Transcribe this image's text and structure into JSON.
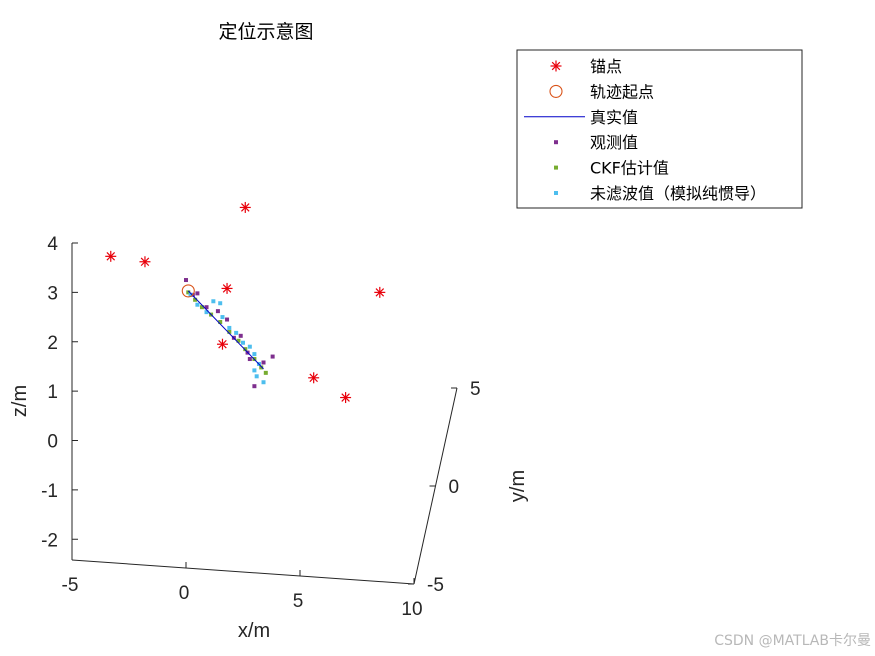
{
  "chart_data": {
    "type": "scatter",
    "title": "定位示意图",
    "xlabel": "x/m",
    "ylabel": "y/m",
    "zlabel": "z/m",
    "xlim": [
      -5,
      10
    ],
    "ylim": [
      -5,
      5
    ],
    "zlim": [
      -2.4,
      4
    ],
    "xticks": [
      "-5",
      "0",
      "5",
      "10"
    ],
    "yticks": [
      "-5",
      "0",
      "5"
    ],
    "zticks": [
      "-2",
      "-1",
      "0",
      "1",
      "2",
      "3",
      "4"
    ],
    "legend_position": "top-right",
    "series": [
      {
        "name": "锚点",
        "marker": "asterisk",
        "color": "#e8000b",
        "points": [
          {
            "x": -3.3,
            "z": 3.73
          },
          {
            "x": -1.8,
            "z": 3.62
          },
          {
            "x": 2.6,
            "z": 4.72
          },
          {
            "x": 1.8,
            "z": 3.08
          },
          {
            "x": 1.6,
            "z": 1.95
          },
          {
            "x": 8.5,
            "z": 3.0
          },
          {
            "x": 5.6,
            "z": 1.27
          },
          {
            "x": 7.0,
            "z": 0.87
          }
        ]
      },
      {
        "name": "轨迹起点",
        "marker": "circle",
        "color": "#d95319",
        "points": [
          {
            "x": 0.1,
            "z": 3.03
          }
        ]
      },
      {
        "name": "真实值",
        "marker": "line",
        "color": "#0000c8",
        "points": [
          {
            "x": 0.1,
            "z": 3.03
          },
          {
            "x": 3.4,
            "z": 1.45
          }
        ]
      },
      {
        "name": "观测值",
        "marker": "square",
        "color": "#7e2f8e",
        "points": [
          {
            "x": 0.0,
            "z": 3.25
          },
          {
            "x": 0.3,
            "z": 2.95
          },
          {
            "x": 0.5,
            "z": 2.98
          },
          {
            "x": 0.9,
            "z": 2.7
          },
          {
            "x": 1.4,
            "z": 2.62
          },
          {
            "x": 1.8,
            "z": 2.45
          },
          {
            "x": 2.1,
            "z": 2.08
          },
          {
            "x": 2.4,
            "z": 2.12
          },
          {
            "x": 2.7,
            "z": 1.78
          },
          {
            "x": 2.8,
            "z": 1.65
          },
          {
            "x": 3.4,
            "z": 1.58
          },
          {
            "x": 3.8,
            "z": 1.7
          },
          {
            "x": 3.0,
            "z": 1.1
          }
        ]
      },
      {
        "name": "CKF估计值",
        "marker": "square",
        "color": "#77ac30",
        "points": [
          {
            "x": 0.1,
            "z": 3.0
          },
          {
            "x": 0.4,
            "z": 2.85
          },
          {
            "x": 0.7,
            "z": 2.7
          },
          {
            "x": 1.1,
            "z": 2.55
          },
          {
            "x": 1.5,
            "z": 2.4
          },
          {
            "x": 1.9,
            "z": 2.2
          },
          {
            "x": 2.3,
            "z": 2.02
          },
          {
            "x": 2.6,
            "z": 1.85
          },
          {
            "x": 3.0,
            "z": 1.65
          },
          {
            "x": 3.3,
            "z": 1.48
          },
          {
            "x": 3.5,
            "z": 1.37
          }
        ]
      },
      {
        "name": "未滤波值（模拟纯惯导）",
        "marker": "square",
        "color": "#4dbeee",
        "points": [
          {
            "x": 0.2,
            "z": 2.95
          },
          {
            "x": 0.5,
            "z": 2.75
          },
          {
            "x": 0.9,
            "z": 2.6
          },
          {
            "x": 1.2,
            "z": 2.82
          },
          {
            "x": 1.5,
            "z": 2.78
          },
          {
            "x": 1.6,
            "z": 2.5
          },
          {
            "x": 1.9,
            "z": 2.28
          },
          {
            "x": 2.2,
            "z": 2.18
          },
          {
            "x": 2.5,
            "z": 1.98
          },
          {
            "x": 2.8,
            "z": 1.9
          },
          {
            "x": 3.0,
            "z": 1.75
          },
          {
            "x": 3.2,
            "z": 1.55
          },
          {
            "x": 3.0,
            "z": 1.42
          },
          {
            "x": 3.1,
            "z": 1.3
          },
          {
            "x": 3.4,
            "z": 1.18
          }
        ]
      }
    ]
  },
  "watermark": "CSDN @MATLAB卡尔曼"
}
